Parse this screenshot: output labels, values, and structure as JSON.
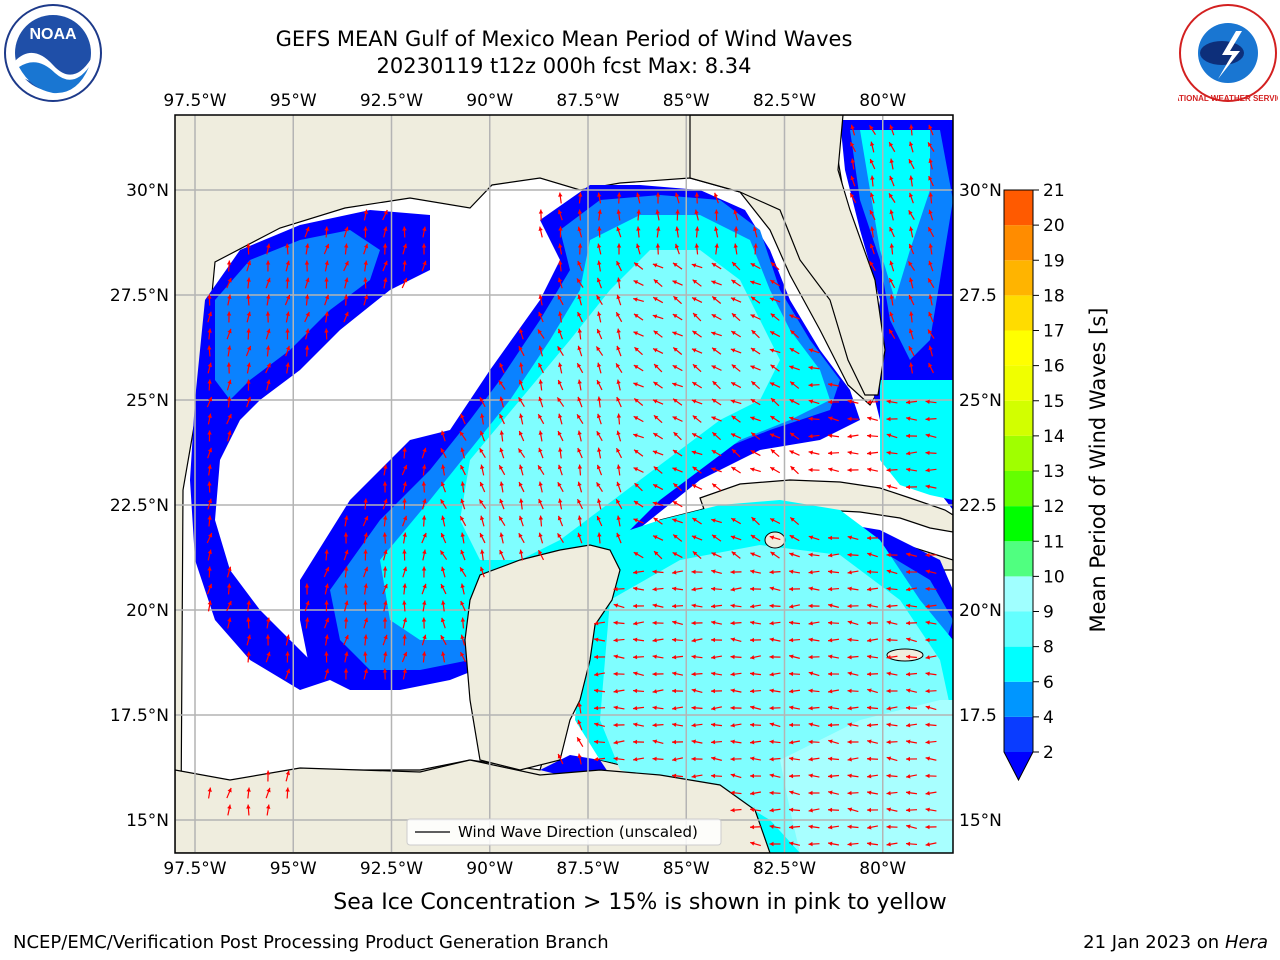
{
  "title": {
    "line1": "GEFS MEAN Gulf of Mexico Mean Period of Wind Waves",
    "line2": "20230119 t12z 000h fcst   Max: 8.34"
  },
  "axes": {
    "lon_labels": [
      "97.5°W",
      "95°W",
      "92.5°W",
      "90°W",
      "87.5°W",
      "85°W",
      "82.5°W",
      "80°W"
    ],
    "lat_labels_left": [
      "30°N",
      "27.5°N",
      "25°N",
      "22.5°N",
      "20°N",
      "17.5°N",
      "15°N"
    ],
    "lat_labels_right": [
      "30°N",
      "27.5",
      "25°N",
      "22.5",
      "20°N",
      "17.5",
      "15°N"
    ]
  },
  "legend": {
    "label": "Wind Wave Direction (unscaled)"
  },
  "colorbar": {
    "label": "Mean Period of Wind Waves [s]",
    "ticks": [
      "2",
      "4",
      "6",
      "8",
      "9",
      "10",
      "11",
      "12",
      "13",
      "14",
      "15",
      "16",
      "17",
      "18",
      "19",
      "20",
      "21"
    ],
    "colors": [
      "#0a3cff",
      "#0096ff",
      "#00ffff",
      "#64ffff",
      "#a0ffff",
      "#50ff80",
      "#00ff00",
      "#64ff00",
      "#a0ff00",
      "#d2ff00",
      "#f0ff00",
      "#ffff00",
      "#ffdc00",
      "#ffb400",
      "#ff8c00",
      "#ff5a00",
      "#ff2800",
      "#ff0000"
    ],
    "extend_color": "#0000ff"
  },
  "colors": {
    "land": "#efedde",
    "deep_blue": "#0000ff",
    "mid_blue": "#0a82ff",
    "cyan": "#00ffff",
    "light_cyan": "#7ffeff",
    "arrow": "#ff0000",
    "grid": "#b4b4b4"
  },
  "subtitle": "Sea Ice Concentration > 15% is shown in pink to yellow",
  "footer": {
    "left": "NCEP/EMC/Verification Post Processing Product Generation Branch",
    "right_date": "21 Jan 2023 on ",
    "right_host": "Hera"
  },
  "logos": {
    "noaa_text": "NOAA",
    "nws_text": "NATIONAL WEATHER SERVICE"
  }
}
